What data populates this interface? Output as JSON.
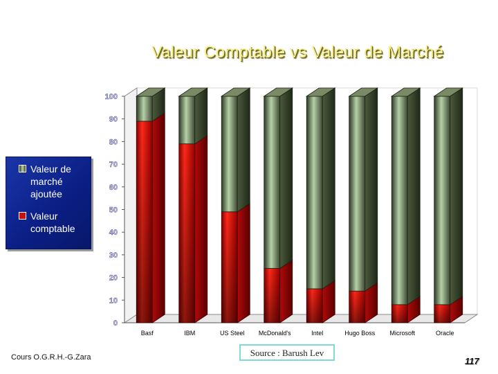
{
  "colors": {
    "market_added": "#3f4a33",
    "book_value": "#c81010",
    "legend_bg": "#0b1f86",
    "title": "#f7f08a"
  },
  "legend": {
    "items": [
      {
        "label": "Valeur de marché ajoutée",
        "color": "#3f4a33"
      },
      {
        "label": "Valeur comptable",
        "color": "#c81010"
      }
    ],
    "placement": "left"
  },
  "footer": {
    "course": "Cours O.G.R.H.-G.Zara",
    "source": "Source : Barush Lev",
    "page": "117"
  },
  "chart_data": {
    "type": "bar",
    "stacked": true,
    "title": "Valeur Comptable vs Valeur de Marché",
    "xlabel": "",
    "ylabel": "",
    "ylim": [
      0,
      100
    ],
    "yticks": [
      0,
      10,
      20,
      30,
      40,
      50,
      60,
      70,
      80,
      90,
      100
    ],
    "grid": false,
    "categories": [
      "Basf",
      "IBM",
      "US Steel",
      "McDonald's",
      "Intel",
      "Hugo Boss",
      "Microsoft",
      "Oracle"
    ],
    "series": [
      {
        "name": "Valeur comptable",
        "values": [
          89,
          79,
          49,
          24,
          15,
          14,
          8,
          8
        ]
      },
      {
        "name": "Valeur de marché ajoutée",
        "values": [
          11,
          21,
          51,
          76,
          85,
          86,
          92,
          92
        ]
      }
    ]
  }
}
